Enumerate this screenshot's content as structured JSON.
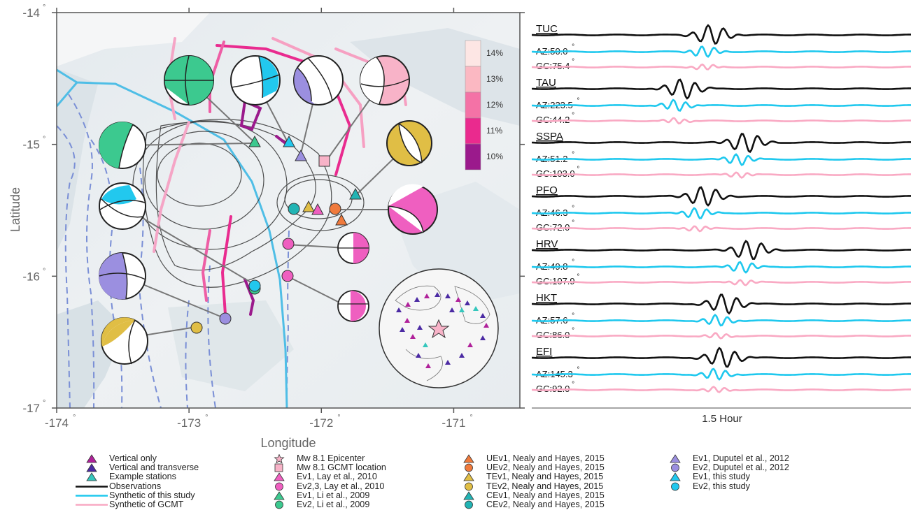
{
  "map": {
    "y_axis_label": "Latitude",
    "x_axis_label": "Longitude",
    "x_ticks": [
      {
        "value": -174,
        "label": "-174",
        "sup": "°"
      },
      {
        "value": -173,
        "label": "-173",
        "sup": "°"
      },
      {
        "value": -172,
        "label": "-172",
        "sup": "°"
      },
      {
        "value": -171,
        "label": "-171",
        "sup": "°"
      }
    ],
    "y_ticks": [
      {
        "value": -14,
        "label": "-14",
        "sup": "°"
      },
      {
        "value": -15,
        "label": "-15",
        "sup": "°"
      },
      {
        "value": -16,
        "label": "-16",
        "sup": "°"
      },
      {
        "value": -17,
        "label": "-17",
        "sup": "°"
      }
    ],
    "x_range": [
      -174,
      -170.5
    ],
    "y_range": [
      -17,
      -14
    ],
    "slip_colorbar": [
      {
        "label": "14%",
        "color": "#fde6e4"
      },
      {
        "label": "13%",
        "color": "#fbb8c2"
      },
      {
        "label": "12%",
        "color": "#f472a6"
      },
      {
        "label": "11%",
        "color": "#ea2a8e"
      },
      {
        "label": "10%",
        "color": "#9b1a8c"
      }
    ]
  },
  "waveforms": {
    "scale_label": "1.5 Hour",
    "colors": {
      "observed": "#111111",
      "synthetic_study": "#1ec8ee",
      "synthetic_gcmt": "#f9a9c3"
    },
    "stations": [
      {
        "name": "TUC",
        "az": "AZ:50.0",
        "gc": "GC:75.4",
        "deg": "°",
        "pulse": 0.45
      },
      {
        "name": "TAU",
        "az": "AZ:223.5",
        "gc": "GC:44.2",
        "deg": "°",
        "pulse": 0.3
      },
      {
        "name": "SSPA",
        "az": "AZ:51.2",
        "gc": "GC:103.0",
        "deg": "°",
        "pulse": 0.63
      },
      {
        "name": "PFO",
        "az": "AZ:46.3",
        "gc": "GC:72.0",
        "deg": "°",
        "pulse": 0.41
      },
      {
        "name": "HRV",
        "az": "AZ:49.8",
        "gc": "GC:107.9",
        "deg": "°",
        "pulse": 0.65
      },
      {
        "name": "HKT",
        "az": "AZ:57.6",
        "gc": "GC:86.0",
        "deg": "°",
        "pulse": 0.52
      },
      {
        "name": "EFI",
        "az": "AZ:145.3",
        "gc": "GC:92.0",
        "deg": "°",
        "pulse": 0.51
      }
    ]
  },
  "legend": {
    "columns": [
      [
        {
          "symbol": "triangle",
          "color": "#b0219a",
          "label": "Vertical only"
        },
        {
          "symbol": "triangle",
          "color": "#4b2aa3",
          "label": "Vertical and transverse"
        },
        {
          "symbol": "triangle",
          "color": "#35c7bd",
          "label": "Example stations"
        },
        {
          "symbol": "line",
          "color": "#111111",
          "label": "Observations"
        },
        {
          "symbol": "line",
          "color": "#1ec8ee",
          "label": "Synthetic of this study"
        },
        {
          "symbol": "line",
          "color": "#f9a9c3",
          "label": "Synthetic of GCMT"
        }
      ],
      [
        {
          "symbol": "star",
          "color": "#f8b3c8",
          "label": "Mw 8.1 Epicenter"
        },
        {
          "symbol": "square",
          "color": "#f8b3c8",
          "label": "Mw 8.1 GCMT location"
        },
        {
          "symbol": "triangle",
          "color": "#ef5fc0",
          "label": "Ev1, Lay et al., 2010"
        },
        {
          "symbol": "circle",
          "color": "#ef5fc0",
          "label": "Ev2,3, Lay et al., 2010"
        },
        {
          "symbol": "triangle",
          "color": "#3cc98f",
          "label": "Ev1, Li et al., 2009"
        },
        {
          "symbol": "circle",
          "color": "#3cc98f",
          "label": "Ev2, Li et al., 2009"
        }
      ],
      [
        {
          "symbol": "triangle",
          "color": "#f07a3c",
          "label": "UEv1, Nealy and Hayes, 2015"
        },
        {
          "symbol": "circle",
          "color": "#f07a3c",
          "label": "UEv2, Nealy and Hayes, 2015"
        },
        {
          "symbol": "triangle",
          "color": "#e0be45",
          "label": "TEv1, Nealy and Hayes, 2015"
        },
        {
          "symbol": "circle",
          "color": "#e0be45",
          "label": "TEv2, Nealy and Hayes, 2015"
        },
        {
          "symbol": "triangle",
          "color": "#22b4b4",
          "label": "CEv1, Nealy and Hayes, 2015"
        },
        {
          "symbol": "circle",
          "color": "#22b4b4",
          "label": "CEv2, Nealy and Hayes, 2015"
        }
      ],
      [
        {
          "symbol": "triangle",
          "color": "#9b8fe0",
          "label": "Ev1, Duputel et al., 2012"
        },
        {
          "symbol": "circle",
          "color": "#9b8fe0",
          "label": "Ev2, Duputel et al., 2012"
        },
        {
          "symbol": "triangle",
          "color": "#22c8ee",
          "label": "Ev1, this study"
        },
        {
          "symbol": "circle",
          "color": "#22c8ee",
          "label": "Ev2, this study"
        }
      ]
    ]
  }
}
